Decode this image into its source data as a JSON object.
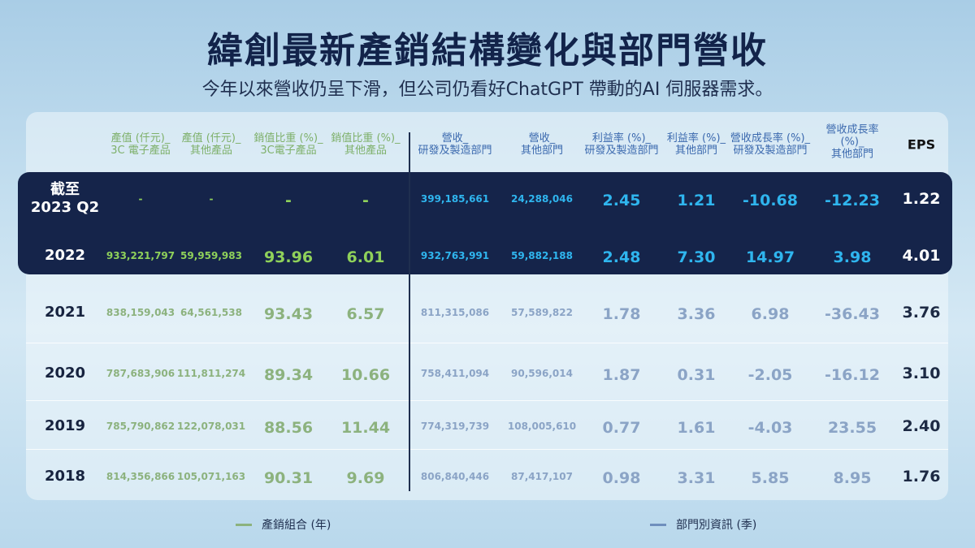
{
  "title": "緯創最新產銷結構變化與部門營收",
  "subtitle": "今年以來營收仍呈下滑，但公司仍看好ChatGPT 帶動的AI 伺服器需求。",
  "colors": {
    "green": "#8cb27e",
    "blue": "#8ba4c6",
    "highlight_bg": "#15244a",
    "title": "#12234a"
  },
  "headers": [
    {
      "l1": "產值 (仟元)_",
      "l2": "3C 電子產品",
      "group": "green"
    },
    {
      "l1": "產值 (仟元)_",
      "l2": "其他產品",
      "group": "green"
    },
    {
      "l1": "銷值比重 (%)_",
      "l2": "3C電子產品",
      "group": "green"
    },
    {
      "l1": "銷值比重 (%)_",
      "l2": "其他產品",
      "group": "green"
    },
    {
      "l1": "營收_",
      "l2": "研發及製造部門",
      "group": "blue"
    },
    {
      "l1": "營收_",
      "l2": "其他部門",
      "group": "blue"
    },
    {
      "l1": "利益率 (%)_",
      "l2": "研發及製造部門",
      "group": "blue"
    },
    {
      "l1": "利益率 (%)_",
      "l2": "其他部門",
      "group": "blue"
    },
    {
      "l1": "營收成長率 (%)_",
      "l2": "研發及製造部門",
      "group": "blue"
    },
    {
      "l1": "營收成長率",
      "l2": "(%)_",
      "l3": "其他部門",
      "group": "blue"
    },
    {
      "l1": "EPS",
      "group": "eps"
    }
  ],
  "rows": [
    {
      "year_l1": "截至",
      "year_l2": "2023 Q2",
      "cells": [
        "-",
        "-",
        "-",
        "-",
        "399,185,661",
        "24,288,046",
        "2.45",
        "1.21",
        "-10.68",
        "-12.23",
        "1.22"
      ]
    },
    {
      "year_l1": "2022",
      "cells": [
        "933,221,797",
        "59,959,983",
        "93.96",
        "6.01",
        "932,763,991",
        "59,882,188",
        "2.48",
        "7.30",
        "14.97",
        "3.98",
        "4.01"
      ]
    },
    {
      "year_l1": "2021",
      "cells": [
        "838,159,043",
        "64,561,538",
        "93.43",
        "6.57",
        "811,315,086",
        "57,589,822",
        "1.78",
        "3.36",
        "6.98",
        "-36.43",
        "3.76"
      ]
    },
    {
      "year_l1": "2020",
      "cells": [
        "787,683,906",
        "111,811,274",
        "89.34",
        "10.66",
        "758,411,094",
        "90,596,014",
        "1.87",
        "0.31",
        "-2.05",
        "-16.12",
        "3.10"
      ]
    },
    {
      "year_l1": "2019",
      "cells": [
        "785,790,862",
        "122,078,031",
        "88.56",
        "11.44",
        "774,319,739",
        "108,005,610",
        "0.77",
        "1.61",
        "-4.03",
        "23.55",
        "2.40"
      ]
    },
    {
      "year_l1": "2018",
      "cells": [
        "814,356,866",
        "105,071,163",
        "90.31",
        "9.69",
        "806,840,446",
        "87,417,107",
        "0.98",
        "3.31",
        "5.85",
        "8.95",
        "1.76"
      ]
    }
  ],
  "legend": [
    {
      "label": "產銷組合 (年)",
      "color": "#8cb27e"
    },
    {
      "label": "部門別資訊 (季)",
      "color": "#6f8fbd"
    }
  ]
}
